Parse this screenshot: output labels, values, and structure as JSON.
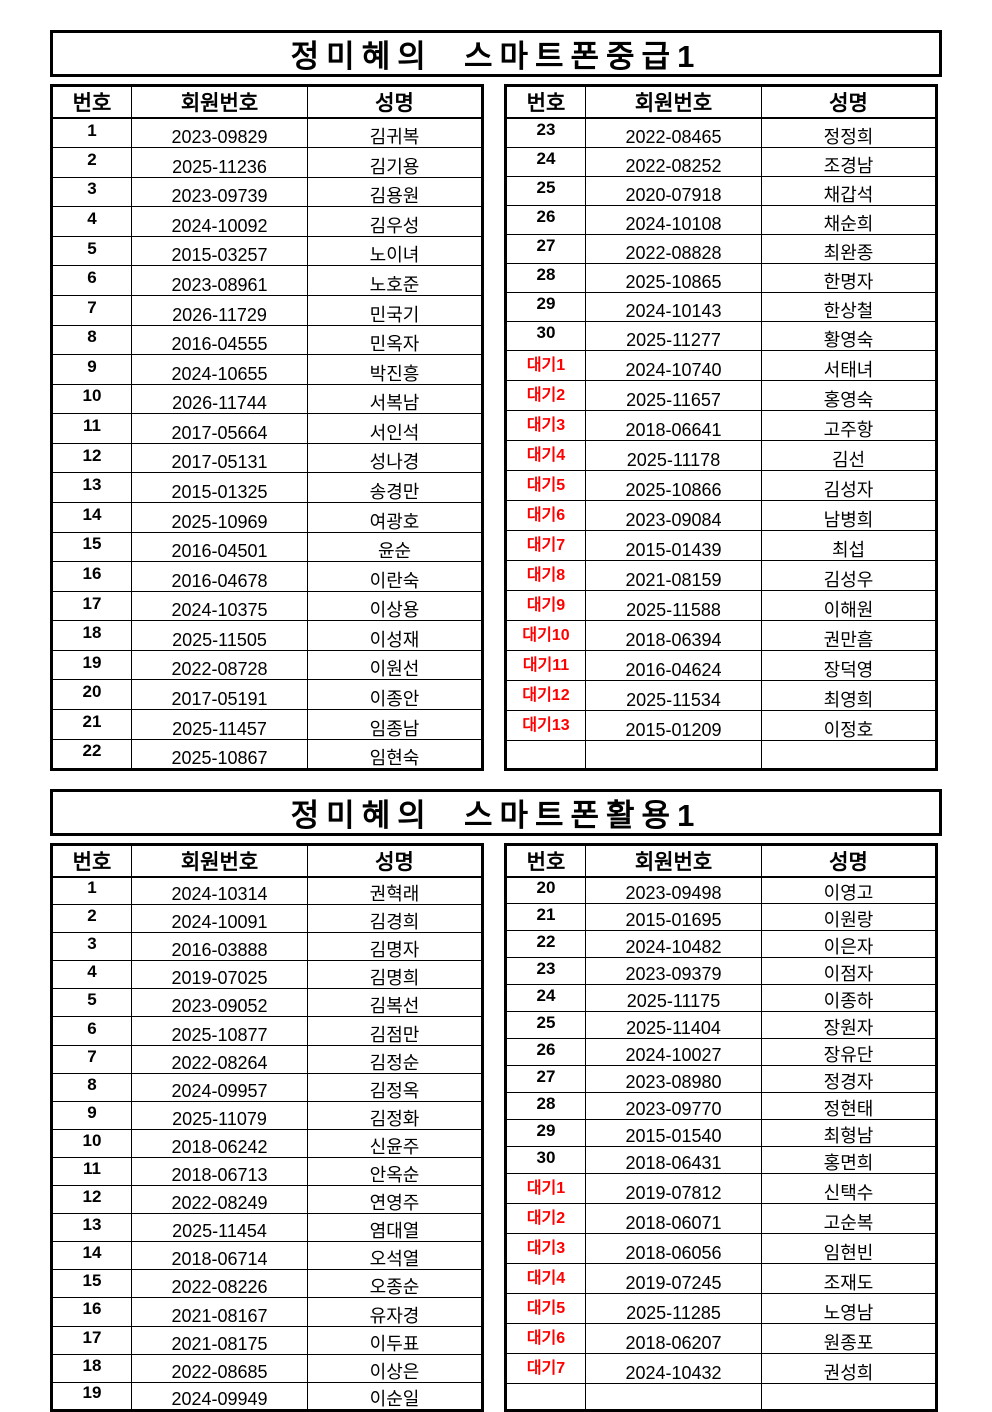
{
  "colors": {
    "text": "#000000",
    "waiting_label": "#ff0000",
    "border": "#000000",
    "background": "#ffffff"
  },
  "sections": [
    {
      "title": "정미혜의  스마트폰중급1",
      "headers": [
        "번호",
        "회원번호",
        "성명"
      ],
      "left_rows": [
        [
          "1",
          "2023-09829",
          "김귀복"
        ],
        [
          "2",
          "2025-11236",
          "김기용"
        ],
        [
          "3",
          "2023-09739",
          "김용원"
        ],
        [
          "4",
          "2024-10092",
          "김우성"
        ],
        [
          "5",
          "2015-03257",
          "노이녀"
        ],
        [
          "6",
          "2023-08961",
          "노호준"
        ],
        [
          "7",
          "2026-11729",
          "민국기"
        ],
        [
          "8",
          "2016-04555",
          "민옥자"
        ],
        [
          "9",
          "2024-10655",
          "박진흥"
        ],
        [
          "10",
          "2026-11744",
          "서복남"
        ],
        [
          "11",
          "2017-05664",
          "서인석"
        ],
        [
          "12",
          "2017-05131",
          "성나경"
        ],
        [
          "13",
          "2015-01325",
          "송경만"
        ],
        [
          "14",
          "2025-10969",
          "여광호"
        ],
        [
          "15",
          "2016-04501",
          "윤순"
        ],
        [
          "16",
          "2016-04678",
          "이란숙"
        ],
        [
          "17",
          "2024-10375",
          "이상용"
        ],
        [
          "18",
          "2025-11505",
          "이성재"
        ],
        [
          "19",
          "2022-08728",
          "이원선"
        ],
        [
          "20",
          "2017-05191",
          "이종안"
        ],
        [
          "21",
          "2025-11457",
          "임종남"
        ],
        [
          "22",
          "2025-10867",
          "임현숙"
        ]
      ],
      "right_rows": [
        [
          "23",
          "2022-08465",
          "정정희"
        ],
        [
          "24",
          "2022-08252",
          "조경남"
        ],
        [
          "25",
          "2020-07918",
          "채갑석"
        ],
        [
          "26",
          "2024-10108",
          "채순희"
        ],
        [
          "27",
          "2022-08828",
          "최완종"
        ],
        [
          "28",
          "2025-10865",
          "한명자"
        ],
        [
          "29",
          "2024-10143",
          "한상철"
        ],
        [
          "30",
          "2025-11277",
          "황영숙"
        ],
        [
          "대기1",
          "2024-10740",
          "서태녀"
        ],
        [
          "대기2",
          "2025-11657",
          "홍영숙"
        ],
        [
          "대기3",
          "2018-06641",
          "고주항"
        ],
        [
          "대기4",
          "2025-11178",
          "김선"
        ],
        [
          "대기5",
          "2025-10866",
          "김성자"
        ],
        [
          "대기6",
          "2023-09084",
          "남병희"
        ],
        [
          "대기7",
          "2015-01439",
          "최섭"
        ],
        [
          "대기8",
          "2021-08159",
          "김성우"
        ],
        [
          "대기9",
          "2025-11588",
          "이해원"
        ],
        [
          "대기10",
          "2018-06394",
          "권만흠"
        ],
        [
          "대기11",
          "2016-04624",
          "장덕영"
        ],
        [
          "대기12",
          "2025-11534",
          "최영희"
        ],
        [
          "대기13",
          "2015-01209",
          "이정호"
        ],
        [
          "",
          "",
          ""
        ]
      ]
    },
    {
      "title": "정미혜의  스마트폰활용1",
      "headers": [
        "번호",
        "회원번호",
        "성명"
      ],
      "left_rows": [
        [
          "1",
          "2024-10314",
          "권혁래"
        ],
        [
          "2",
          "2024-10091",
          "김경희"
        ],
        [
          "3",
          "2016-03888",
          "김명자"
        ],
        [
          "4",
          "2019-07025",
          "김명희"
        ],
        [
          "5",
          "2023-09052",
          "김복선"
        ],
        [
          "6",
          "2025-10877",
          "김점만"
        ],
        [
          "7",
          "2022-08264",
          "김정순"
        ],
        [
          "8",
          "2024-09957",
          "김정옥"
        ],
        [
          "9",
          "2025-11079",
          "김정화"
        ],
        [
          "10",
          "2018-06242",
          "신윤주"
        ],
        [
          "11",
          "2018-06713",
          "안옥순"
        ],
        [
          "12",
          "2022-08249",
          "연영주"
        ],
        [
          "13",
          "2025-11454",
          "염대열"
        ],
        [
          "14",
          "2018-06714",
          "오석열"
        ],
        [
          "15",
          "2022-08226",
          "오종순"
        ],
        [
          "16",
          "2021-08167",
          "유자경"
        ],
        [
          "17",
          "2021-08175",
          "이두표"
        ],
        [
          "18",
          "2022-08685",
          "이상은"
        ],
        [
          "19",
          "2024-09949",
          "이순일"
        ]
      ],
      "right_rows": [
        [
          "20",
          "2023-09498",
          "이영고"
        ],
        [
          "21",
          "2015-01695",
          "이원랑"
        ],
        [
          "22",
          "2024-10482",
          "이은자"
        ],
        [
          "23",
          "2023-09379",
          "이점자"
        ],
        [
          "24",
          "2025-11175",
          "이종하"
        ],
        [
          "25",
          "2025-11404",
          "장원자"
        ],
        [
          "26",
          "2024-10027",
          "장유단"
        ],
        [
          "27",
          "2023-08980",
          "정경자"
        ],
        [
          "28",
          "2023-09770",
          "정현태"
        ],
        [
          "29",
          "2015-01540",
          "최형남"
        ],
        [
          "30",
          "2018-06431",
          "홍면희"
        ],
        [
          "대기1",
          "2019-07812",
          "신택수"
        ],
        [
          "대기2",
          "2018-06071",
          "고순복"
        ],
        [
          "대기3",
          "2018-06056",
          "임현빈"
        ],
        [
          "대기4",
          "2019-07245",
          "조재도"
        ],
        [
          "대기5",
          "2025-11285",
          "노영남"
        ],
        [
          "대기6",
          "2018-06207",
          "원종포"
        ],
        [
          "대기7",
          "2024-10432",
          "권성희"
        ],
        [
          "",
          "",
          ""
        ]
      ]
    }
  ]
}
